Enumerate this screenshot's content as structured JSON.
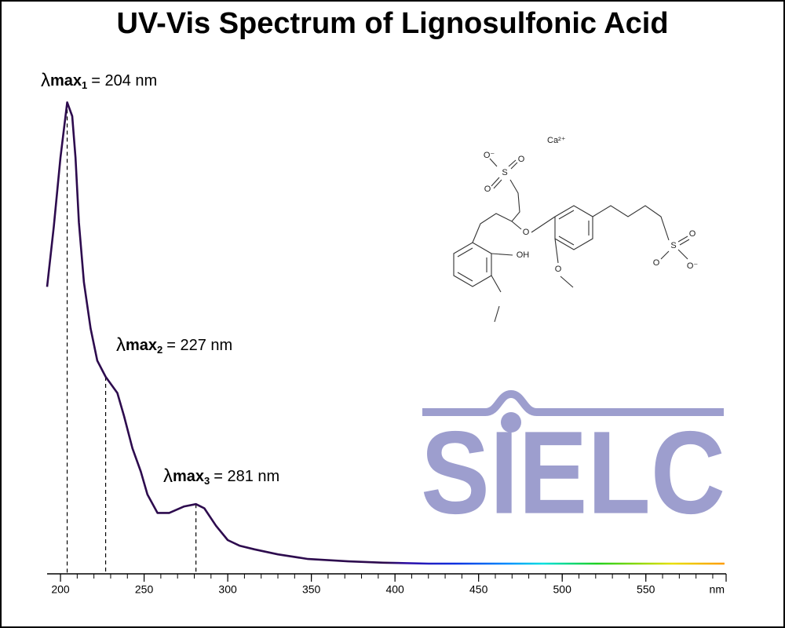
{
  "chart_data": {
    "type": "line",
    "title": "UV-Vis Spectrum of Lignosulfonic Acid",
    "x_label": "nm",
    "x": [
      192,
      196,
      200,
      204,
      207,
      209,
      211,
      214,
      218,
      222,
      227,
      234,
      238,
      243,
      248,
      252,
      258,
      265,
      274,
      281,
      286,
      293,
      300,
      307,
      316,
      330,
      348,
      372,
      393,
      420,
      500,
      597
    ],
    "values": [
      0.6,
      0.73,
      0.88,
      1.0,
      0.97,
      0.88,
      0.74,
      0.61,
      0.51,
      0.44,
      0.405,
      0.37,
      0.32,
      0.25,
      0.2,
      0.15,
      0.11,
      0.11,
      0.124,
      0.129,
      0.12,
      0.082,
      0.051,
      0.039,
      0.031,
      0.02,
      0.01,
      0.005,
      0.002,
      0,
      0,
      0
    ],
    "color": "#2d0b4e",
    "xlim": [
      192,
      598
    ],
    "ylim": [
      0,
      1.05
    ],
    "xticks": [
      200,
      250,
      300,
      350,
      400,
      450,
      500,
      550
    ],
    "xminorticks": [
      200,
      210,
      220,
      230,
      240,
      250,
      260,
      270,
      280,
      290,
      300,
      310,
      320,
      330,
      340,
      350,
      360,
      370,
      380,
      390,
      400,
      410,
      420,
      430,
      440,
      450,
      460,
      470,
      480,
      490,
      500,
      510,
      520,
      530,
      540,
      550,
      560,
      570,
      580,
      590
    ],
    "annotations": [
      {
        "symbol": "λ",
        "label": "max",
        "subscript": "1",
        "text": "= 204 nm",
        "x": 204
      },
      {
        "symbol": "λ",
        "label": "max",
        "subscript": "2",
        "text": "= 227 nm",
        "x": 227
      },
      {
        "symbol": "λ",
        "label": "max",
        "subscript": "3",
        "text": "= 281 nm",
        "x": 281
      }
    ]
  },
  "structure": {
    "labels": [
      "Ca²⁺",
      "O⁻",
      "S",
      "O",
      "O",
      "OH",
      "O",
      "O",
      "S",
      "O",
      "O",
      "O⁻"
    ]
  },
  "logo": "SIELC"
}
